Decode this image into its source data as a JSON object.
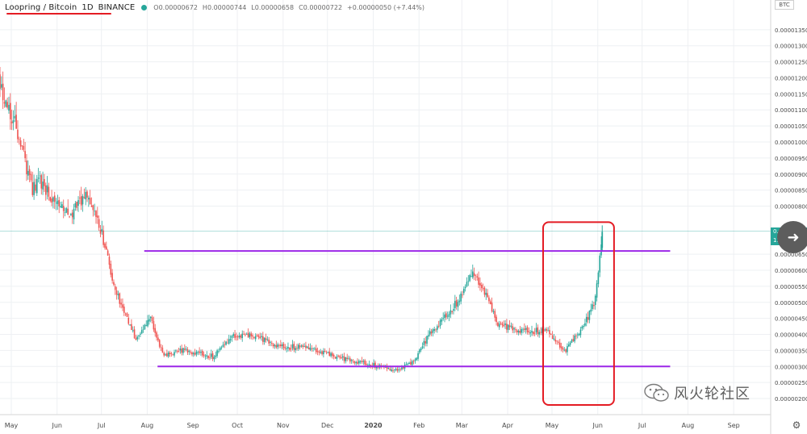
{
  "header": {
    "symbol": "Loopring / Bitcoin",
    "interval": "1D",
    "exchange": "BINANCE",
    "ohlc": {
      "open": "O0.00000672",
      "high": "H0.00000744",
      "low": "L0.00000658",
      "close": "C0.00000722",
      "change": "+0.00000050 (+7.44%)"
    }
  },
  "price_scale": {
    "currency": "BTC",
    "last_price": "0.00000722",
    "countdown": "11:49:1"
  },
  "watermark": {
    "text": "风火轮社区"
  },
  "colors": {
    "up": "#26a69a",
    "down": "#ef5350",
    "grid": "#eef0f3",
    "support_resistance": "#9c27e8",
    "highlight_box": "#e41b23",
    "last_price_line": "#26a69a"
  },
  "icons": {
    "status_dot": "circle-dot-icon",
    "goto_realtime": "arrow-right-icon",
    "settings": "gear-icon",
    "watermark": "wechat-icon"
  },
  "chart_data": {
    "type": "candlestick",
    "title": "Loopring / Bitcoin 1D BINANCE",
    "ylim": [
      1.8e-06,
      1.43e-05
    ],
    "y_ticks": [
      "0.00001350",
      "0.00001300",
      "0.00001250",
      "0.00001200",
      "0.00001150",
      "0.00001100",
      "0.00001050",
      "0.00001000",
      "0.00000950",
      "0.00000900",
      "0.00000850",
      "0.00000800",
      "0.00000650",
      "0.00000600",
      "0.00000550",
      "0.00000500",
      "0.00000450",
      "0.00000400",
      "0.00000350",
      "0.00000300",
      "0.00000250",
      "0.00000200"
    ],
    "x_ticks": [
      "May",
      "Jun",
      "Jul",
      "Aug",
      "Sep",
      "Oct",
      "Nov",
      "Dec",
      "2020",
      "Feb",
      "Mar",
      "Apr",
      "May",
      "Jun",
      "Jul",
      "Aug",
      "Sep"
    ],
    "series": [
      {
        "type": "candles",
        "points": [
          [
            "2019-04-20",
            1.22e-05
          ],
          [
            "2019-05-05",
            1.04e-05
          ],
          [
            "2019-05-15",
            8.5e-06
          ],
          [
            "2019-05-20",
            8.8e-06
          ],
          [
            "2019-06-01",
            8e-06
          ],
          [
            "2019-06-12",
            7.8e-06
          ],
          [
            "2019-06-20",
            8.4e-06
          ],
          [
            "2019-07-01",
            7.2e-06
          ],
          [
            "2019-07-08",
            5.8e-06
          ],
          [
            "2019-07-15",
            4.8e-06
          ],
          [
            "2019-07-25",
            3.8e-06
          ],
          [
            "2019-08-03",
            4.6e-06
          ],
          [
            "2019-08-12",
            3.3e-06
          ],
          [
            "2019-08-25",
            3.5e-06
          ],
          [
            "2019-09-15",
            3.3e-06
          ],
          [
            "2019-09-28",
            4e-06
          ],
          [
            "2019-10-15",
            3.9e-06
          ],
          [
            "2019-10-30",
            3.6e-06
          ],
          [
            "2019-11-20",
            3.6e-06
          ],
          [
            "2019-12-05",
            3.3e-06
          ],
          [
            "2019-12-25",
            3.1e-06
          ],
          [
            "2020-01-15",
            2.9e-06
          ],
          [
            "2020-01-28",
            3.1e-06
          ],
          [
            "2020-02-08",
            4e-06
          ],
          [
            "2020-02-20",
            4.6e-06
          ],
          [
            "2020-03-01",
            5.2e-06
          ],
          [
            "2020-03-08",
            6e-06
          ],
          [
            "2020-03-15",
            5.5e-06
          ],
          [
            "2020-03-25",
            4.3e-06
          ],
          [
            "2020-04-10",
            4.1e-06
          ],
          [
            "2020-04-20",
            4.1e-06
          ],
          [
            "2020-04-28",
            4.1e-06
          ],
          [
            "2020-05-10",
            3.5e-06
          ],
          [
            "2020-05-22",
            4.2e-06
          ],
          [
            "2020-05-30",
            5e-06
          ],
          [
            "2020-06-04",
            7.2e-06
          ]
        ]
      },
      {
        "type": "horizontal_line",
        "y": 6.6e-06,
        "x_start": "2019-07-30",
        "x_end": "2020-07-20"
      },
      {
        "type": "horizontal_line",
        "y": 3e-06,
        "x_start": "2019-08-08",
        "x_end": "2020-07-20"
      },
      {
        "type": "rectangle",
        "x_start": "2020-04-25",
        "x_end": "2020-06-12",
        "y_bottom": 1.8e-06,
        "y_top": 7.5e-06
      }
    ],
    "last_price": 7.22e-06,
    "grid": true
  }
}
